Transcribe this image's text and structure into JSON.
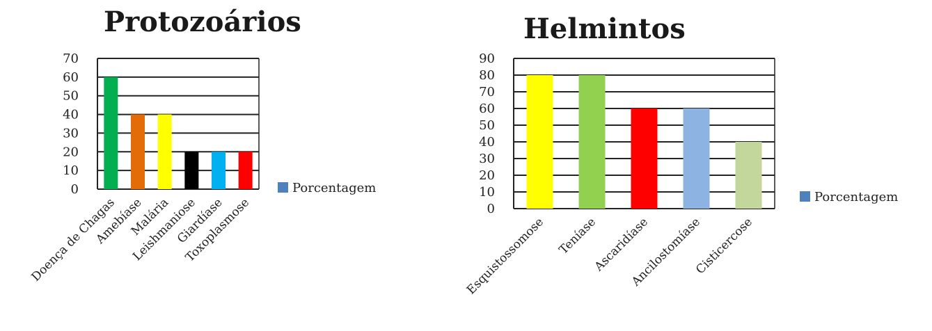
{
  "chart_data": [
    {
      "type": "bar",
      "title": "Protozoários",
      "categories": [
        "Doença de Chagas",
        "Amebíase",
        "Malária",
        "Leishmaniose",
        "Giardíase",
        "Toxoplasmose"
      ],
      "series": [
        {
          "name": "Porcentagem",
          "values": [
            60,
            40,
            40,
            20,
            20,
            20
          ],
          "legend_color": "#4f81bd",
          "point_colors": [
            "#00b050",
            "#e36c09",
            "#ffff00",
            "#000000",
            "#00b0f0",
            "#ff0000"
          ]
        }
      ],
      "ylim": [
        0,
        70
      ],
      "yticks": [
        0,
        10,
        20,
        30,
        40,
        50,
        60,
        70
      ],
      "grid": true,
      "legend": "right"
    },
    {
      "type": "bar",
      "title": "Helmintos",
      "categories": [
        "Esquistossomose",
        "Teníase",
        "Ascaridíase",
        "Ancilostomíase",
        "Cisticercose"
      ],
      "series": [
        {
          "name": "Porcentagem",
          "values": [
            80,
            80,
            60,
            60,
            40
          ],
          "legend_color": "#4f81bd",
          "point_colors": [
            "#ffff00",
            "#92d050",
            "#ff0000",
            "#8db3e2",
            "#c3d69b"
          ]
        }
      ],
      "ylim": [
        0,
        90
      ],
      "yticks": [
        0,
        10,
        20,
        30,
        40,
        50,
        60,
        70,
        80,
        90
      ],
      "grid": true,
      "legend": "right"
    }
  ]
}
